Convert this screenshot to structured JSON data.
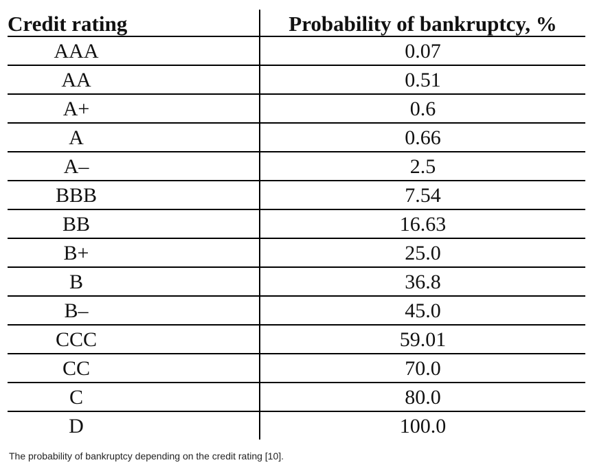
{
  "table": {
    "headers": {
      "rating": "Credit rating",
      "probability": "Probability of bankruptcy, %"
    },
    "rows": [
      {
        "rating": "AAA",
        "probability": "0.07"
      },
      {
        "rating": "AA",
        "probability": "0.51"
      },
      {
        "rating": "A+",
        "probability": "0.6"
      },
      {
        "rating": "A",
        "probability": "0.66"
      },
      {
        "rating": "A–",
        "probability": "2.5"
      },
      {
        "rating": "BBB",
        "probability": "7.54"
      },
      {
        "rating": "BB",
        "probability": "16.63"
      },
      {
        "rating": "B+",
        "probability": "25.0"
      },
      {
        "rating": "B",
        "probability": "36.8"
      },
      {
        "rating": "B–",
        "probability": "45.0"
      },
      {
        "rating": "CCC",
        "probability": "59.01"
      },
      {
        "rating": "CC",
        "probability": "70.0"
      },
      {
        "rating": "C",
        "probability": "80.0"
      },
      {
        "rating": "D",
        "probability": "100.0"
      }
    ]
  },
  "caption": "The probability of bankruptcy depending on the credit rating [10]."
}
